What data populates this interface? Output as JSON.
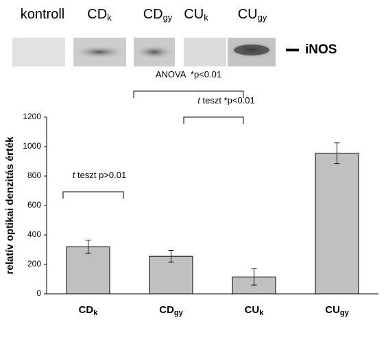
{
  "blot": {
    "band_label": "iNOS",
    "lanes": [
      {
        "text": "kontroll"
      },
      {
        "text": "CD",
        "sub": "k"
      },
      {
        "text": "CD",
        "sub": "gy"
      },
      {
        "text": "CU",
        "sub": "k"
      },
      {
        "text": "CU",
        "sub": "gy"
      }
    ]
  },
  "chart_data": {
    "type": "bar",
    "y_label": "relatív optikai denzitás érték",
    "categories": [
      {
        "text": "CD",
        "sub": "k"
      },
      {
        "text": "CD",
        "sub": "gy"
      },
      {
        "text": "CU",
        "sub": "k"
      },
      {
        "text": "CU",
        "sub": "gy"
      }
    ],
    "values": [
      320,
      255,
      115,
      955
    ],
    "errors": [
      45,
      40,
      55,
      70
    ],
    "color": "#c0c0c0",
    "ylim": [
      0,
      1200
    ],
    "yticks": [
      0,
      200,
      400,
      600,
      800,
      1000,
      1200
    ],
    "grid": false,
    "annotations": [
      {
        "italic": "",
        "text": "ANOVA  *p<0.01"
      },
      {
        "italic": "t",
        "text": " teszt *p<0.01"
      },
      {
        "italic": "t",
        "text": " teszt p>0.01"
      }
    ]
  }
}
